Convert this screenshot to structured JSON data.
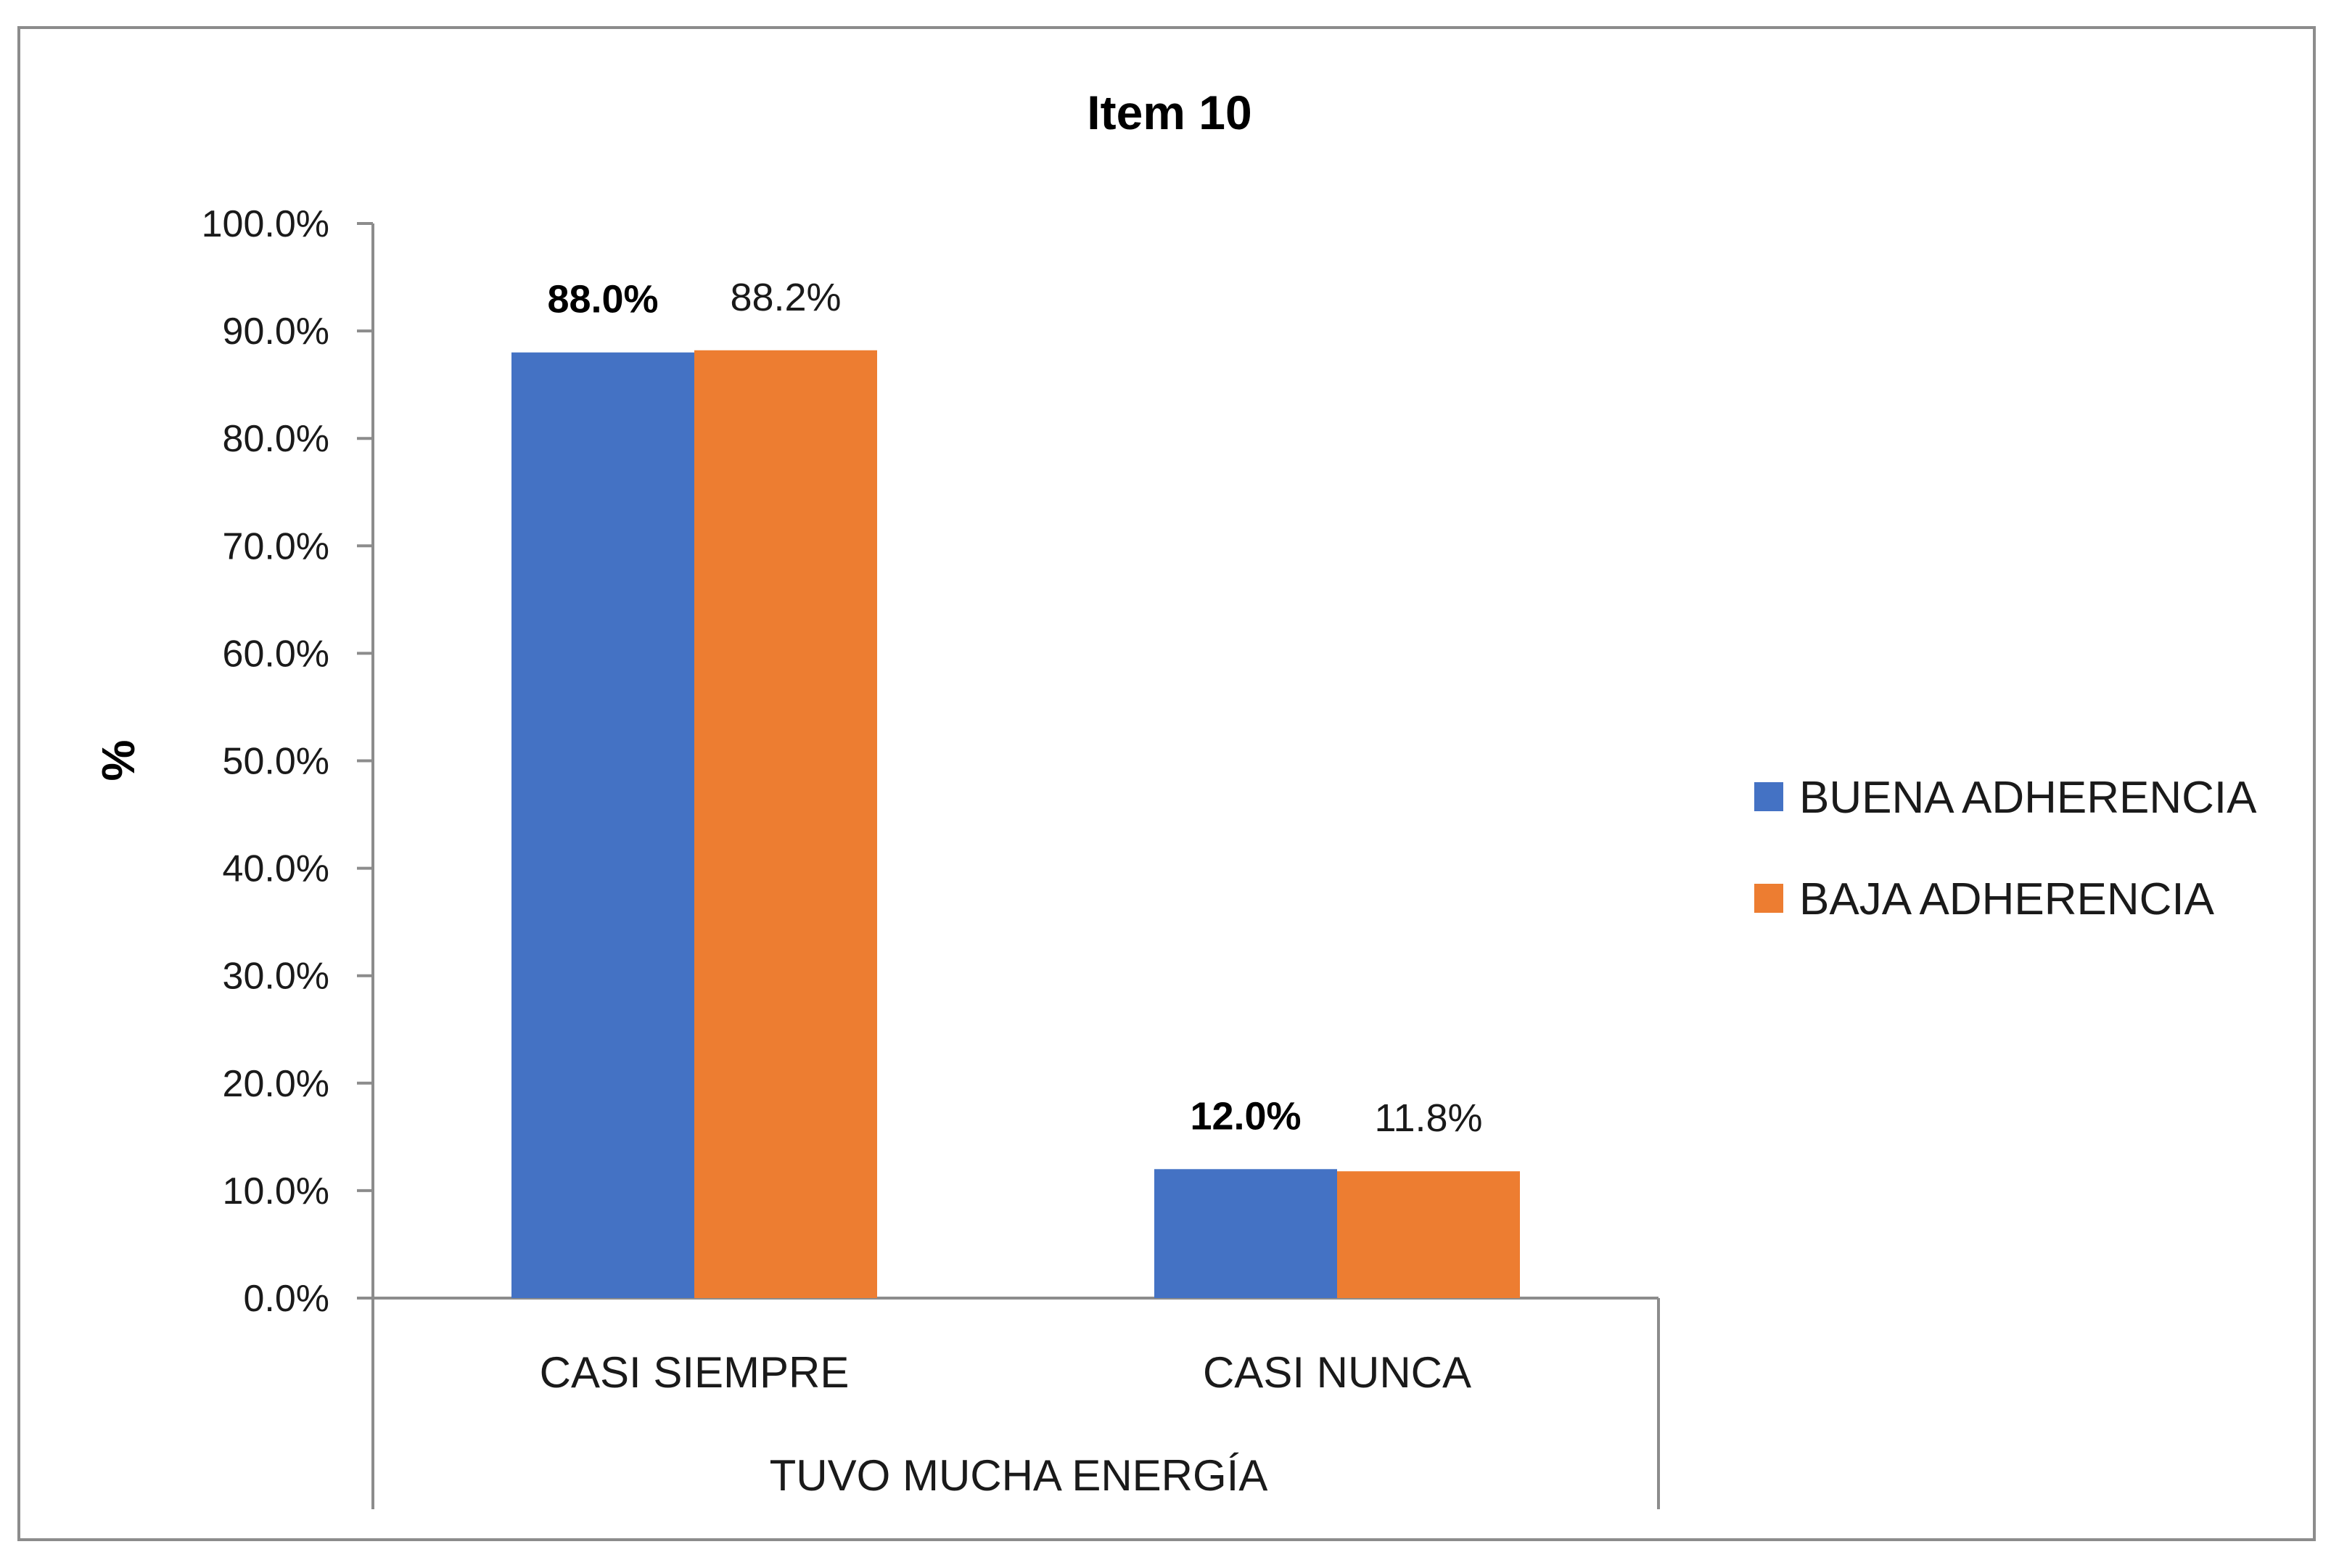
{
  "chart_data": {
    "type": "bar",
    "title": "Item 10",
    "ylabel": "%",
    "xlabel": "TUVO MUCHA ENERGÍA",
    "categories": [
      "CASI SIEMPRE",
      "CASI NUNCA"
    ],
    "ylim": [
      0,
      100
    ],
    "yticks": [
      0,
      10,
      20,
      30,
      40,
      50,
      60,
      70,
      80,
      90,
      100
    ],
    "ytick_labels": [
      "0.0%",
      "10.0%",
      "20.0%",
      "30.0%",
      "40.0%",
      "50.0%",
      "60.0%",
      "70.0%",
      "80.0%",
      "90.0%",
      "100.0%"
    ],
    "series": [
      {
        "name": "BUENA ADHERENCIA",
        "values": [
          88.0,
          12.0
        ],
        "labels": [
          "88.0%",
          "12.0%"
        ],
        "color": "#4472C4",
        "label_bold": true
      },
      {
        "name": "BAJA ADHERENCIA",
        "values": [
          88.2,
          11.8
        ],
        "labels": [
          "88.2%",
          "11.8%"
        ],
        "color": "#ED7D31",
        "label_bold": false
      }
    ],
    "grid": false,
    "legend_position": "right"
  }
}
